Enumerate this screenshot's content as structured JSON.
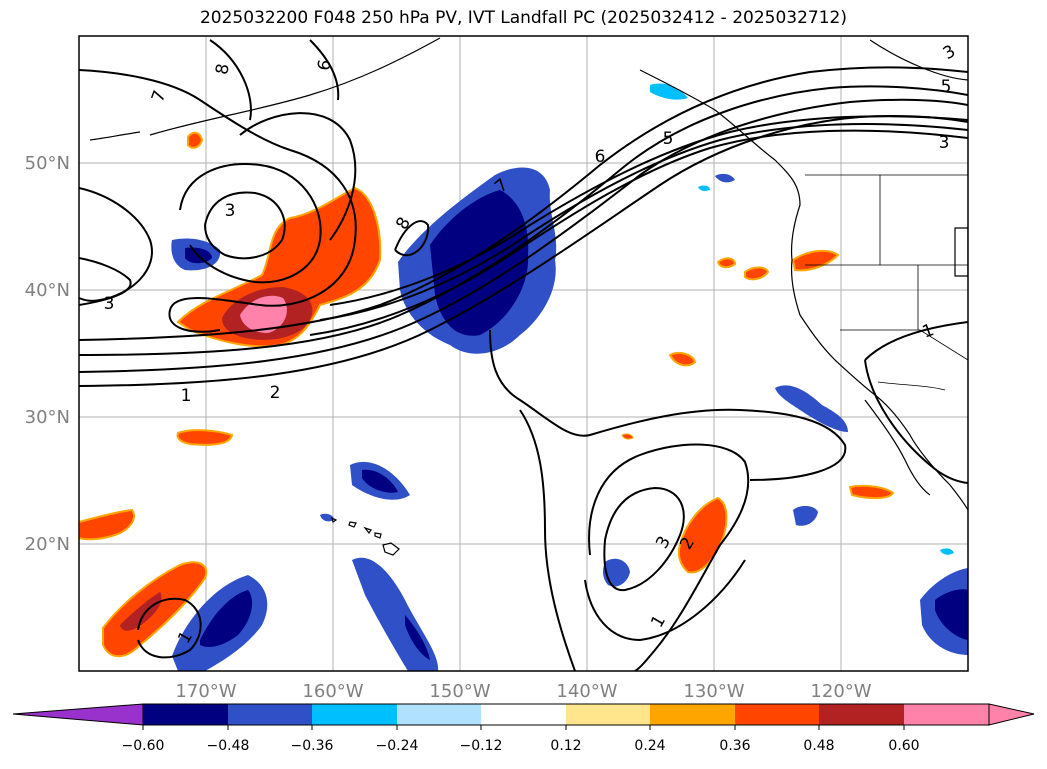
{
  "title": "2025032200 F048 250 hPa PV, IVT Landfall PC (2025032412 - 2025032712)",
  "map": {
    "longitude_labels": [
      "170°W",
      "160°W",
      "150°W",
      "140°W",
      "130°W",
      "120°W"
    ],
    "latitude_labels": [
      "50°N",
      "40°N",
      "30°N",
      "20°N"
    ],
    "contour_labels": [
      "8",
      "6",
      "7",
      "3",
      "5",
      "6",
      "5",
      "3",
      "3",
      "8",
      "7",
      "3",
      "1",
      "2",
      "3",
      "2",
      "1",
      "1",
      "1"
    ]
  },
  "colorbar": {
    "ticks": [
      "−0.60",
      "−0.48",
      "−0.36",
      "−0.24",
      "−0.12",
      "0.12",
      "0.24",
      "0.36",
      "0.48",
      "0.60"
    ],
    "colors": [
      "#9932cc",
      "#000080",
      "#3050c8",
      "#00bfff",
      "#b0e2ff",
      "#ffffff",
      "#ffe68c",
      "#ffa500",
      "#ff4500",
      "#b22222",
      "#ff82ab"
    ]
  },
  "chart_data": {
    "type": "heatmap",
    "title": "2025032200 F048 250 hPa PV, IVT Landfall PC (2025032412 - 2025032712)",
    "xlabel": "",
    "ylabel": "",
    "lon_range": [
      -180,
      -110
    ],
    "lat_range": [
      10,
      60
    ],
    "grid": true,
    "colorbar_levels": [
      -0.6,
      -0.48,
      -0.36,
      -0.24,
      -0.12,
      0.12,
      0.24,
      0.36,
      0.48,
      0.6
    ],
    "contour_levels_labeled": [
      1,
      2,
      3,
      5,
      6,
      7,
      8
    ]
  }
}
